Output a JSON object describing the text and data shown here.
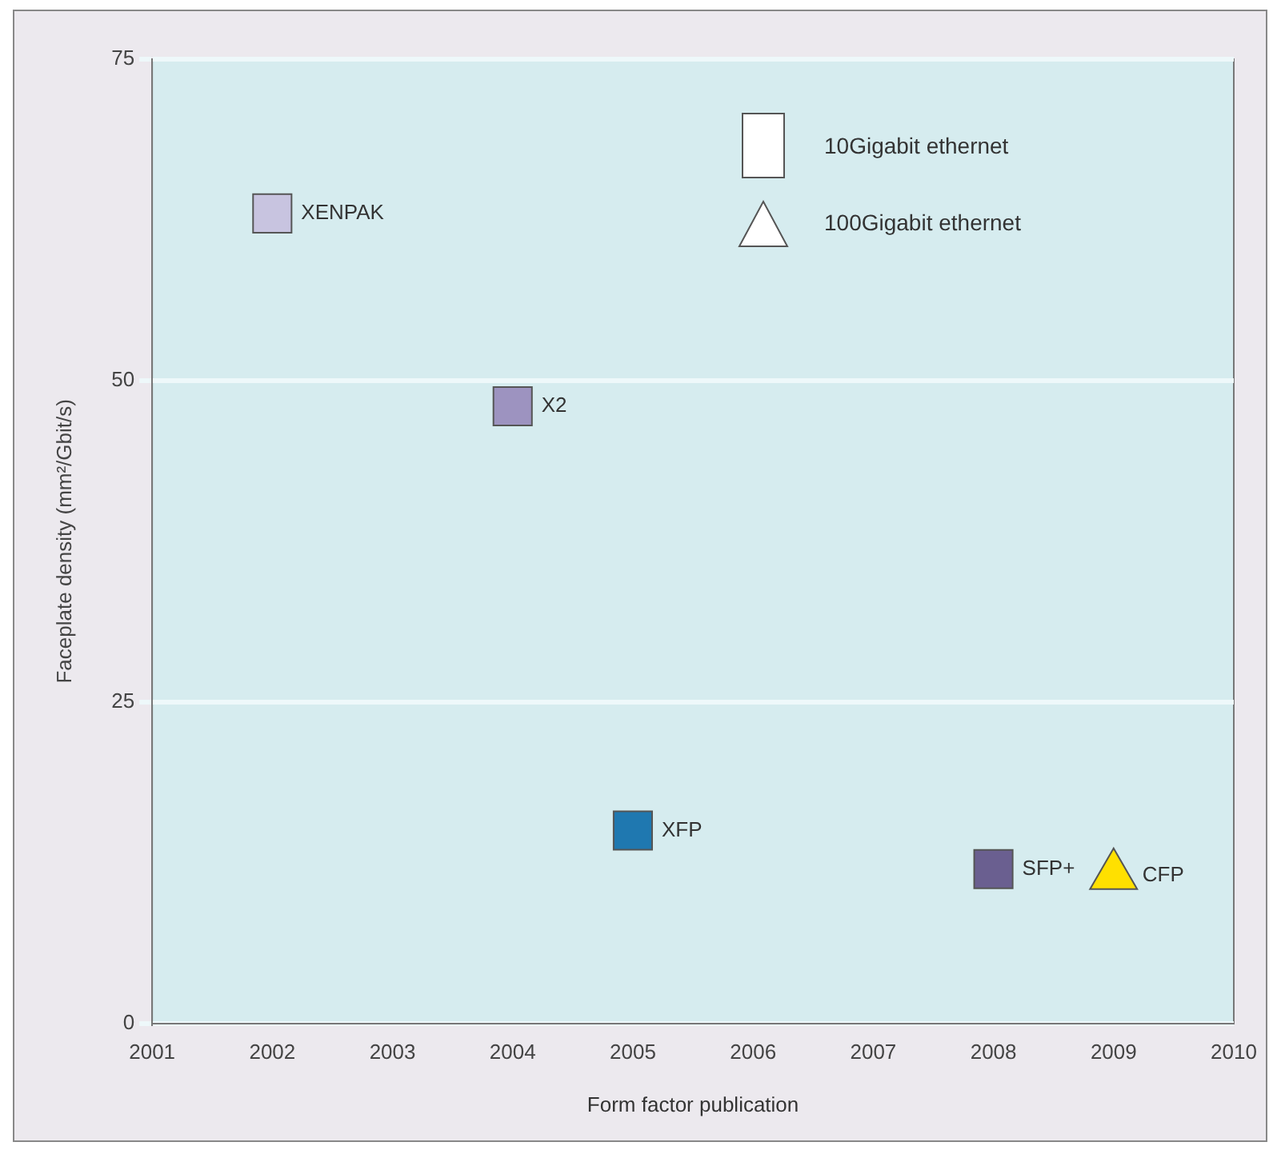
{
  "chart_data": {
    "type": "scatter",
    "xlabel": "Form factor publication",
    "ylabel": "Faceplate density (mm²/Gbit/s)",
    "xlim": [
      2001,
      2010
    ],
    "xticks": [
      2001,
      2002,
      2003,
      2004,
      2005,
      2006,
      2007,
      2008,
      2009,
      2010
    ],
    "ylim": [
      0,
      75
    ],
    "yticks": [
      0,
      25,
      50,
      75
    ],
    "grid": "y",
    "series": [
      {
        "color": "#ffffff",
        "marker": "square",
        "x": [
          2002,
          2004,
          2005,
          2008
        ],
        "values": [
          63,
          48,
          15,
          12
        ],
        "colors": [
          "#c8c4e0",
          "#9d93c0",
          "#1f78b0",
          "#6a5f90"
        ]
      },
      {
        "color": "#ffffff",
        "marker": "triangle",
        "x": [
          2009
        ],
        "values": [
          11.5
        ],
        "colors": [
          "#ffe000"
        ]
      }
    ],
    "annotations": [
      "10Gigabit ethernet",
      "100Gigabit ethernet",
      {
        "text": "XENPAK",
        "x": 2002,
        "y": 63
      },
      {
        "text": "X2",
        "x": 2004,
        "y": 48
      },
      {
        "text": "XFP",
        "x": 2005,
        "y": 15
      },
      {
        "text": "SFP+",
        "x": 2008,
        "y": 12
      },
      {
        "text": "CFP",
        "x": 2009,
        "y": 11.5
      }
    ]
  }
}
